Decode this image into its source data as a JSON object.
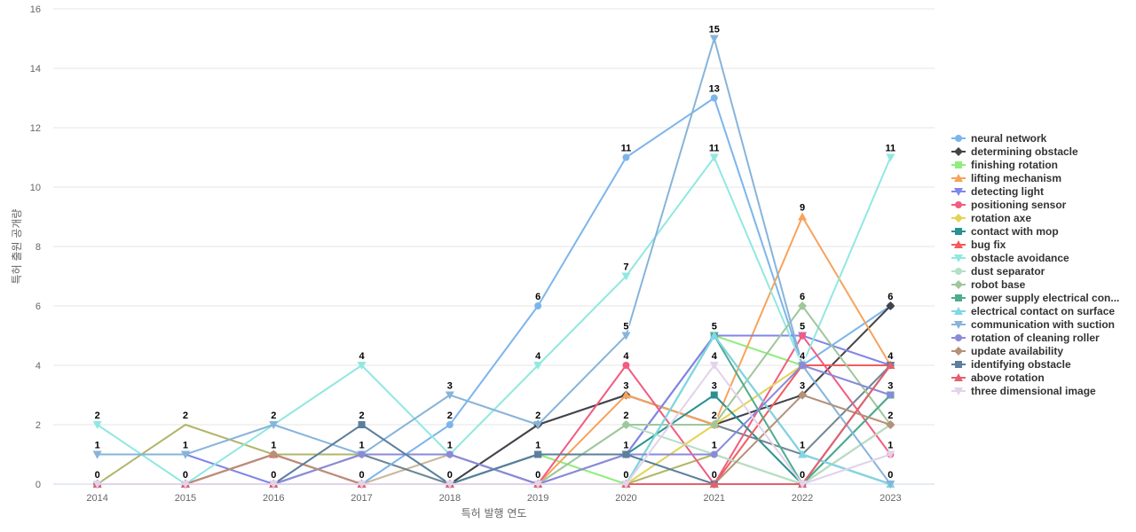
{
  "chart_data": {
    "type": "line",
    "xlabel": "특허 발행 연도",
    "ylabel": "특허 출원 공개량",
    "ylim": [
      0,
      16
    ],
    "yticks": [
      0,
      2,
      4,
      6,
      8,
      10,
      12,
      14,
      16
    ],
    "grid": true,
    "legend_position": "right",
    "categories": [
      "2014",
      "2015",
      "2016",
      "2017",
      "2018",
      "2019",
      "2020",
      "2021",
      "2022",
      "2023"
    ],
    "series": [
      {
        "name": "neural network",
        "color": "#7cb5ec",
        "marker": "circle",
        "values": [
          0,
          0,
          0,
          0,
          2,
          6,
          11,
          13,
          4,
          6
        ]
      },
      {
        "name": "determining obstacle",
        "color": "#434348",
        "marker": "diamond",
        "values": [
          0,
          0,
          0,
          0,
          0,
          2,
          3,
          2,
          3,
          6
        ]
      },
      {
        "name": "finishing rotation",
        "color": "#90ed7d",
        "marker": "square",
        "values": [
          0,
          0,
          0,
          0,
          0,
          1,
          0,
          5,
          4,
          4
        ]
      },
      {
        "name": "lifting mechanism",
        "color": "#f7a35c",
        "marker": "triangle",
        "values": [
          0,
          0,
          0,
          0,
          0,
          0,
          3,
          2,
          9,
          4
        ]
      },
      {
        "name": "detecting light",
        "color": "#8085e9",
        "marker": "triangle-down",
        "values": [
          1,
          1,
          0,
          1,
          1,
          0,
          1,
          5,
          5,
          4
        ]
      },
      {
        "name": "positioning sensor",
        "color": "#f15c80",
        "marker": "circle",
        "values": [
          0,
          0,
          1,
          0,
          0,
          0,
          4,
          0,
          5,
          1
        ]
      },
      {
        "name": "rotation axe",
        "color": "#e4d354",
        "marker": "diamond",
        "values": [
          0,
          0,
          0,
          0,
          0,
          0,
          0,
          2,
          4,
          4
        ]
      },
      {
        "name": "contact with mop",
        "color": "#2b908f",
        "marker": "square",
        "values": [
          0,
          0,
          0,
          0,
          0,
          1,
          1,
          3,
          0,
          3
        ]
      },
      {
        "name": "bug fix",
        "color": "#f45b5b",
        "marker": "triangle",
        "values": [
          0,
          0,
          1,
          0,
          0,
          0,
          0,
          0,
          4,
          4
        ]
      },
      {
        "name": "obstacle avoidance",
        "color": "#91e8e1",
        "marker": "triangle-down",
        "values": [
          2,
          0,
          2,
          4,
          1,
          4,
          7,
          11,
          4,
          11
        ]
      },
      {
        "name": "dust separator",
        "color": "#b5dfc7",
        "marker": "circle",
        "values": [
          0,
          0,
          0,
          0,
          0,
          0,
          2,
          1,
          0,
          2
        ]
      },
      {
        "name": "robot base",
        "color": "#9fc79b",
        "marker": "diamond",
        "values": [
          0,
          0,
          0,
          0,
          0,
          0,
          2,
          2,
          6,
          2
        ]
      },
      {
        "name": "power supply electrical con...",
        "color": "#4dad8e",
        "marker": "square",
        "values": [
          0,
          0,
          0,
          0,
          0,
          0,
          0,
          5,
          0,
          3
        ]
      },
      {
        "name": "electrical contact on surface",
        "color": "#7fd7e6",
        "marker": "triangle",
        "values": [
          0,
          0,
          0,
          0,
          0,
          0,
          0,
          5,
          1,
          0
        ]
      },
      {
        "name": "communication with suction",
        "color": "#87b4da",
        "marker": "triangle-down",
        "values": [
          1,
          1,
          2,
          1,
          3,
          2,
          5,
          15,
          4,
          0
        ]
      },
      {
        "name": "rotation of cleaning roller",
        "color": "#8a8ad8",
        "marker": "circle",
        "values": [
          0,
          0,
          0,
          1,
          1,
          0,
          1,
          1,
          4,
          3
        ]
      },
      {
        "name": "update availability",
        "color": "#b5917a",
        "marker": "diamond",
        "values": [
          0,
          0,
          1,
          0,
          0,
          0,
          0,
          0,
          3,
          2
        ]
      },
      {
        "name": "identifying obstacle",
        "color": "#5b7f9c",
        "marker": "square",
        "values": [
          0,
          0,
          0,
          2,
          0,
          1,
          1,
          0,
          0,
          4
        ]
      },
      {
        "name": "above rotation",
        "color": "#e5606e",
        "marker": "triangle",
        "values": [
          0,
          0,
          0,
          0,
          0,
          0,
          0,
          0,
          0,
          4
        ]
      },
      {
        "name": "three dimensional image",
        "color": "#e2d2ea",
        "marker": "triangle-down",
        "values": [
          0,
          0,
          0,
          0,
          0,
          0,
          0,
          4,
          0,
          1
        ]
      }
    ],
    "extra_lines": [
      {
        "color": "#a9ad5a",
        "values": [
          0,
          2,
          1,
          1,
          1,
          0,
          0,
          1,
          0,
          2
        ]
      },
      {
        "color": "#c3b091",
        "values": [
          0,
          0,
          0,
          0,
          1,
          0,
          0,
          0,
          0,
          2
        ]
      },
      {
        "color": "#5f7a8a",
        "values": [
          0,
          0,
          0,
          1,
          0,
          2,
          3,
          2,
          1,
          4
        ]
      },
      {
        "color": "#3c4a66",
        "values": [
          0,
          0,
          0,
          0,
          0,
          1,
          1,
          5,
          1,
          0
        ]
      },
      {
        "color": "#c7677a",
        "values": [
          0,
          0,
          1,
          0,
          0,
          0,
          0,
          0,
          0,
          4
        ]
      }
    ],
    "data_labels": [
      {
        "x": "2014",
        "y": 2,
        "text": "2"
      },
      {
        "x": "2014",
        "y": 1,
        "text": "1"
      },
      {
        "x": "2014",
        "y": 0,
        "text": "0"
      },
      {
        "x": "2015",
        "y": 2,
        "text": "2"
      },
      {
        "x": "2015",
        "y": 1,
        "text": "1"
      },
      {
        "x": "2015",
        "y": 0,
        "text": "0"
      },
      {
        "x": "2016",
        "y": 2,
        "text": "2"
      },
      {
        "x": "2016",
        "y": 1,
        "text": "1"
      },
      {
        "x": "2016",
        "y": 0,
        "text": "0"
      },
      {
        "x": "2017",
        "y": 4,
        "text": "4"
      },
      {
        "x": "2017",
        "y": 2,
        "text": "2"
      },
      {
        "x": "2017",
        "y": 1,
        "text": "1"
      },
      {
        "x": "2017",
        "y": 0,
        "text": "0"
      },
      {
        "x": "2018",
        "y": 3,
        "text": "3"
      },
      {
        "x": "2018",
        "y": 2,
        "text": "2"
      },
      {
        "x": "2018",
        "y": 1,
        "text": "1"
      },
      {
        "x": "2018",
        "y": 0,
        "text": "0"
      },
      {
        "x": "2019",
        "y": 6,
        "text": "6"
      },
      {
        "x": "2019",
        "y": 4,
        "text": "4"
      },
      {
        "x": "2019",
        "y": 2,
        "text": "2"
      },
      {
        "x": "2019",
        "y": 1,
        "text": "1"
      },
      {
        "x": "2019",
        "y": 0,
        "text": "0"
      },
      {
        "x": "2020",
        "y": 11,
        "text": "11"
      },
      {
        "x": "2020",
        "y": 7,
        "text": "7"
      },
      {
        "x": "2020",
        "y": 5,
        "text": "5"
      },
      {
        "x": "2020",
        "y": 4,
        "text": "4"
      },
      {
        "x": "2020",
        "y": 3,
        "text": "3"
      },
      {
        "x": "2020",
        "y": 2,
        "text": "2"
      },
      {
        "x": "2020",
        "y": 1,
        "text": "1"
      },
      {
        "x": "2020",
        "y": 0,
        "text": "0"
      },
      {
        "x": "2021",
        "y": 15,
        "text": "15"
      },
      {
        "x": "2021",
        "y": 13,
        "text": "13"
      },
      {
        "x": "2021",
        "y": 11,
        "text": "11"
      },
      {
        "x": "2021",
        "y": 5,
        "text": "5"
      },
      {
        "x": "2021",
        "y": 4,
        "text": "4"
      },
      {
        "x": "2021",
        "y": 3,
        "text": "3"
      },
      {
        "x": "2021",
        "y": 2,
        "text": "2"
      },
      {
        "x": "2021",
        "y": 1,
        "text": "1"
      },
      {
        "x": "2021",
        "y": 0,
        "text": "0"
      },
      {
        "x": "2022",
        "y": 9,
        "text": "9"
      },
      {
        "x": "2022",
        "y": 6,
        "text": "6"
      },
      {
        "x": "2022",
        "y": 5,
        "text": "5"
      },
      {
        "x": "2022",
        "y": 4,
        "text": "4"
      },
      {
        "x": "2022",
        "y": 3,
        "text": "3"
      },
      {
        "x": "2022",
        "y": 1,
        "text": "1"
      },
      {
        "x": "2022",
        "y": 0,
        "text": "0"
      },
      {
        "x": "2023",
        "y": 11,
        "text": "11"
      },
      {
        "x": "2023",
        "y": 6,
        "text": "6"
      },
      {
        "x": "2023",
        "y": 4,
        "text": "4"
      },
      {
        "x": "2023",
        "y": 3,
        "text": "3"
      },
      {
        "x": "2023",
        "y": 2,
        "text": "2"
      },
      {
        "x": "2023",
        "y": 1,
        "text": "1"
      },
      {
        "x": "2023",
        "y": 0,
        "text": "0"
      }
    ]
  }
}
